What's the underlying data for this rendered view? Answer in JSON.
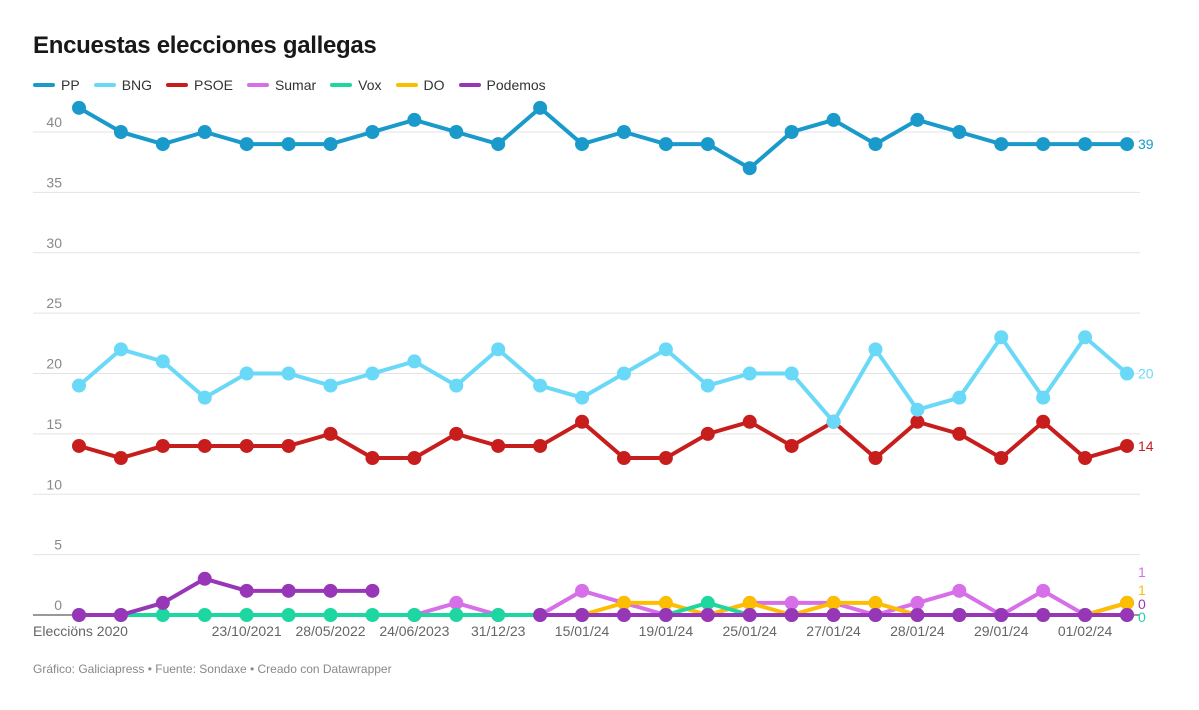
{
  "chart_data": {
    "type": "line",
    "title": "Encuestas elecciones gallegas",
    "x_tick_labels": [
      "Elecciöns 2020",
      "",
      "",
      "",
      "23/10/2021",
      "",
      "28/05/2022",
      "",
      "24/06/2023",
      "",
      "31/12/23",
      "",
      "15/01/24",
      "",
      "19/01/24",
      "",
      "25/01/24",
      "",
      "27/01/24",
      "",
      "28/01/24",
      "",
      "29/01/24",
      "",
      "01/02/24",
      ""
    ],
    "ylim": [
      0,
      42
    ],
    "yticks": [
      0,
      5,
      10,
      15,
      20,
      25,
      30,
      35,
      40
    ],
    "grid": true,
    "legend": "top-left",
    "series": [
      {
        "name": "PP",
        "color": "#1a9acb",
        "values": [
          42,
          40,
          39,
          40,
          39,
          39,
          39,
          40,
          41,
          40,
          39,
          42,
          39,
          40,
          39,
          39,
          37,
          40,
          41,
          39,
          41,
          40,
          39,
          39,
          39,
          39
        ],
        "end_label": "39"
      },
      {
        "name": "BNG",
        "color": "#6ad9f8",
        "values": [
          19,
          22,
          21,
          18,
          20,
          20,
          19,
          20,
          21,
          19,
          22,
          19,
          18,
          20,
          22,
          19,
          20,
          20,
          16,
          22,
          17,
          18,
          23,
          18,
          23,
          20
        ],
        "end_label": "20"
      },
      {
        "name": "PSOE",
        "color": "#c71e1d",
        "values": [
          14,
          13,
          14,
          14,
          14,
          14,
          15,
          13,
          13,
          15,
          14,
          14,
          16,
          13,
          13,
          15,
          16,
          14,
          16,
          13,
          16,
          15,
          13,
          16,
          13,
          14
        ],
        "end_label": "14"
      },
      {
        "name": "Sumar",
        "color": "#d66fe8",
        "values": [
          null,
          null,
          null,
          null,
          null,
          null,
          null,
          null,
          0,
          1,
          0,
          0,
          2,
          1,
          0,
          0,
          1,
          1,
          1,
          0,
          1,
          2,
          0,
          2,
          0,
          1
        ],
        "end_label": "1"
      },
      {
        "name": "Vox",
        "color": "#1ed6a0",
        "values": [
          0,
          0,
          0,
          0,
          0,
          0,
          0,
          0,
          0,
          0,
          0,
          0,
          0,
          0,
          0,
          1,
          0,
          0,
          0,
          0,
          0,
          0,
          0,
          0,
          0,
          0
        ],
        "end_label": "0"
      },
      {
        "name": "DO",
        "color": "#fdbd00",
        "values": [
          null,
          null,
          null,
          null,
          null,
          null,
          null,
          null,
          null,
          null,
          null,
          null,
          0,
          1,
          1,
          0,
          1,
          0,
          1,
          1,
          0,
          0,
          0,
          0,
          0,
          1
        ],
        "end_label": "1"
      },
      {
        "name": "Podemos",
        "color": "#9737b8",
        "values": [
          0,
          0,
          1,
          3,
          2,
          2,
          2,
          2,
          null,
          null,
          null,
          0,
          0,
          0,
          0,
          0,
          0,
          0,
          0,
          0,
          0,
          0,
          0,
          0,
          0,
          0
        ],
        "end_label": "0"
      }
    ]
  },
  "footer": "Gráfico: Galiciapress • Fuente: Sondaxe • Creado con Datawrapper"
}
